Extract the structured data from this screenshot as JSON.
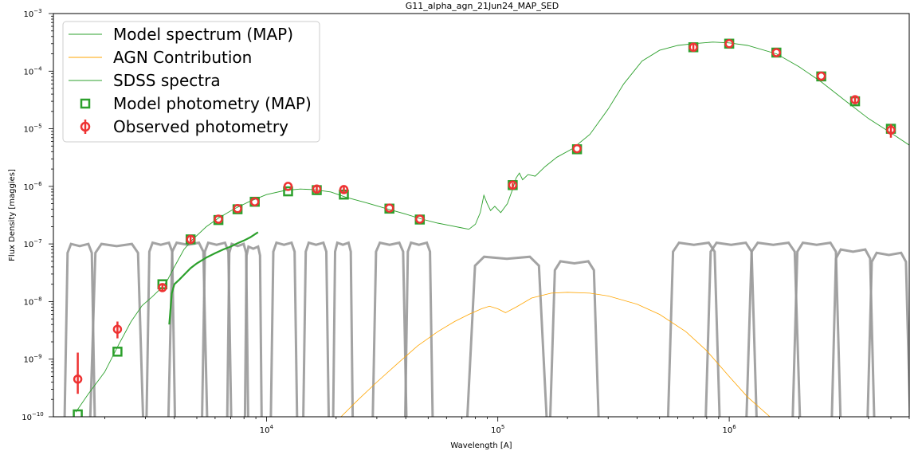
{
  "chart_data": {
    "type": "line",
    "title": "G11_alpha_agn_21Jun24_MAP_SED",
    "xlabel": "Wavelength [A]",
    "ylabel": "Flux Density [maggies]",
    "xscale": "log",
    "yscale": "log",
    "xlim": [
      1200,
      6000000
    ],
    "ylim": [
      1e-10,
      0.001
    ],
    "x_tick_labels": [
      {
        "value": 10000,
        "base": "10",
        "exp": "4"
      },
      {
        "value": 100000,
        "base": "10",
        "exp": "5"
      },
      {
        "value": 1000000,
        "base": "10",
        "exp": "6"
      }
    ],
    "y_tick_labels": [
      {
        "value": 1e-10,
        "base": "10",
        "exp": "−10"
      },
      {
        "value": 1e-09,
        "base": "10",
        "exp": "−9"
      },
      {
        "value": 1e-08,
        "base": "10",
        "exp": "−8"
      },
      {
        "value": 1e-07,
        "base": "10",
        "exp": "−7"
      },
      {
        "value": 1e-06,
        "base": "10",
        "exp": "−6"
      },
      {
        "value": 1e-05,
        "base": "10",
        "exp": "−5"
      },
      {
        "value": 0.0001,
        "base": "10",
        "exp": "−4"
      },
      {
        "value": 0.001,
        "base": "10",
        "exp": "−3"
      }
    ],
    "legend_position": "top-left",
    "colors": {
      "model": "#2ca02c",
      "agn": "#ffa500",
      "sdss": "#2ca02c",
      "model_phot": "#2ca02c",
      "obs_phot": "#ee3333",
      "filters": "#999999"
    },
    "legend": [
      {
        "key": "model",
        "label": "Model spectrum (MAP)",
        "marker": "line"
      },
      {
        "key": "agn",
        "label": "AGN Contribution",
        "marker": "line"
      },
      {
        "key": "sdss",
        "label": "SDSS spectra",
        "marker": "line"
      },
      {
        "key": "model_phot",
        "label": "Model photometry (MAP)",
        "marker": "square"
      },
      {
        "key": "obs_phot",
        "label": "Observed photometry",
        "marker": "circle-err"
      }
    ],
    "series": [
      {
        "name": "Model spectrum (MAP)",
        "x": [
          1500,
          1700,
          2000,
          2300,
          2600,
          2900,
          3200,
          3500,
          3700,
          4000,
          4400,
          4800,
          5500,
          6200,
          7200,
          8400,
          10000,
          12000,
          14000,
          16000,
          19000,
          22000,
          27000,
          33000,
          40000,
          47000,
          55000,
          62000,
          70000,
          75000,
          80000,
          84000,
          87000,
          90000,
          93000,
          97000,
          103000,
          110000,
          116000,
          120000,
          124000,
          128000,
          135000,
          145000,
          160000,
          180000,
          210000,
          250000,
          300000,
          350000,
          420000,
          500000,
          600000,
          700000,
          850000,
          1000000,
          1200000,
          1600000,
          2000000,
          2500000,
          3200000,
          4000000,
          5000000,
          6000000
        ],
        "y": [
          1.2e-10,
          2.5e-10,
          6e-10,
          1.8e-09,
          4.5e-09,
          8.5e-09,
          1.2e-08,
          1.7e-08,
          2.2e-08,
          4e-08,
          8e-08,
          1.2e-07,
          2e-07,
          2.8e-07,
          4e-07,
          5.4e-07,
          7.2e-07,
          8.5e-07,
          9e-07,
          8.8e-07,
          8e-07,
          6.5e-07,
          5.2e-07,
          4.1e-07,
          3.3e-07,
          2.7e-07,
          2.3e-07,
          2.1e-07,
          1.9e-07,
          1.8e-07,
          2.2e-07,
          3.5e-07,
          7e-07,
          5e-07,
          3.8e-07,
          4.5e-07,
          3.5e-07,
          5e-07,
          9e-07,
          1.4e-06,
          1.7e-06,
          1.3e-06,
          1.6e-06,
          1.5e-06,
          2.2e-06,
          3.2e-06,
          4.5e-06,
          8e-06,
          2.2e-05,
          6e-05,
          0.00015,
          0.00023,
          0.00028,
          0.0003,
          0.00032,
          0.00031,
          0.00028,
          0.0002,
          0.00012,
          6.5e-05,
          3e-05,
          1.5e-05,
          8.5e-06,
          5.2e-06
        ]
      },
      {
        "name": "AGN Contribution",
        "x": [
          21000,
          25000,
          30000,
          37000,
          45000,
          55000,
          65000,
          75000,
          85000,
          92000,
          100000,
          108000,
          120000,
          140000,
          170000,
          200000,
          250000,
          300000,
          400000,
          500000,
          650000,
          800000,
          1000000,
          1200000,
          1500000
        ],
        "y": [
          1e-10,
          2e-10,
          4e-10,
          8.5e-10,
          1.7e-09,
          3e-09,
          4.5e-09,
          6e-09,
          7.5e-09,
          8.3e-09,
          7.5e-09,
          6.4e-09,
          8e-09,
          1.15e-08,
          1.4e-08,
          1.45e-08,
          1.4e-08,
          1.25e-08,
          9e-09,
          6e-09,
          3e-09,
          1.4e-09,
          5e-10,
          2.2e-10,
          1e-10
        ]
      },
      {
        "name": "SDSS spectra",
        "x": [
          3800,
          3900,
          4000,
          4200,
          4400,
          4700,
          5000,
          5500,
          6000,
          6500,
          7000,
          7500,
          8000,
          8500,
          9200
        ],
        "y": [
          4e-09,
          1.4e-08,
          2e-08,
          2.4e-08,
          2.9e-08,
          3.8e-08,
          4.6e-08,
          5.8e-08,
          6.9e-08,
          8e-08,
          9e-08,
          1.03e-07,
          1.15e-07,
          1.3e-07,
          1.6e-07
        ]
      }
    ],
    "model_photometry": {
      "x": [
        1530,
        2270,
        3550,
        4700,
        6200,
        7500,
        8900,
        12400,
        16500,
        21600,
        34000,
        46000,
        116000,
        220000,
        700000,
        1000000,
        1600000,
        2500000,
        3500000,
        5000000
      ],
      "y": [
        1.1e-10,
        1.35e-09,
        2e-08,
        1.2e-07,
        2.6e-07,
        4e-07,
        5.4e-07,
        8.2e-07,
        8.6e-07,
        7.2e-07,
        4.1e-07,
        2.65e-07,
        1.05e-06,
        4.4e-06,
        0.00026,
        0.0003,
        0.00021,
        8.1e-05,
        3e-05,
        1e-05
      ]
    },
    "observed_photometry": {
      "x": [
        1530,
        2270,
        3550,
        4700,
        6200,
        7500,
        8900,
        12400,
        16500,
        21600,
        34000,
        46000,
        116000,
        220000,
        700000,
        1000000,
        1600000,
        2500000,
        3500000,
        5000000
      ],
      "y": [
        4.5e-10,
        3.3e-09,
        1.75e-08,
        1.2e-07,
        2.7e-07,
        4.1e-07,
        5.4e-07,
        1e-06,
        9e-07,
        8.8e-07,
        4.2e-07,
        2.7e-07,
        1.05e-06,
        4.5e-06,
        0.00026,
        0.0003,
        0.00021,
        8.2e-05,
        3.2e-05,
        9.5e-06
      ],
      "y_err_low": [
        2e-10,
        1e-09,
        2.5e-09,
        2e-08,
        0,
        0,
        0,
        0,
        1e-07,
        1e-07,
        0,
        0,
        1e-07,
        0,
        3e-05,
        0,
        0,
        0,
        4e-06,
        2.5e-06
      ],
      "y_err_high": [
        8.5e-10,
        1.2e-09,
        2.5e-09,
        2e-08,
        0,
        0,
        0,
        0,
        1e-07,
        1e-07,
        0,
        0,
        1e-07,
        0,
        3e-05,
        0,
        0,
        0,
        4e-06,
        2.5e-06
      ]
    },
    "filter_curves": [
      {
        "lo": 1350,
        "hi": 1800,
        "peak": 1e-07
      },
      {
        "lo": 1750,
        "hi": 2900,
        "peak": 1e-07
      },
      {
        "lo": 3050,
        "hi": 4000,
        "peak": 1.05e-07
      },
      {
        "lo": 3800,
        "hi": 5500,
        "peak": 1.05e-07
      },
      {
        "lo": 5300,
        "hi": 7000,
        "peak": 1.05e-07
      },
      {
        "lo": 6800,
        "hi": 8300,
        "peak": 1e-07
      },
      {
        "lo": 8100,
        "hi": 9500,
        "peak": 9e-08
      },
      {
        "lo": 10500,
        "hi": 13500,
        "peak": 1.05e-07
      },
      {
        "lo": 14500,
        "hi": 18500,
        "peak": 1.05e-07
      },
      {
        "lo": 19500,
        "hi": 23500,
        "peak": 1.05e-07
      },
      {
        "lo": 29000,
        "hi": 40000,
        "peak": 1.05e-07
      },
      {
        "lo": 40000,
        "hi": 52000,
        "peak": 1.05e-07
      },
      {
        "lo": 75000,
        "hi": 160000,
        "peak": 6e-08
      },
      {
        "lo": 170000,
        "hi": 270000,
        "peak": 5e-08
      },
      {
        "lo": 550000,
        "hi": 900000,
        "peak": 1.05e-07
      },
      {
        "lo": 800000,
        "hi": 1300000,
        "peak": 1.05e-07
      },
      {
        "lo": 1200000,
        "hi": 2000000,
        "peak": 1.05e-07
      },
      {
        "lo": 1900000,
        "hi": 3000000,
        "peak": 1.05e-07
      },
      {
        "lo": 2800000,
        "hi": 4200000,
        "peak": 8e-08
      },
      {
        "lo": 4000000,
        "hi": 6000000,
        "peak": 7e-08
      }
    ]
  }
}
